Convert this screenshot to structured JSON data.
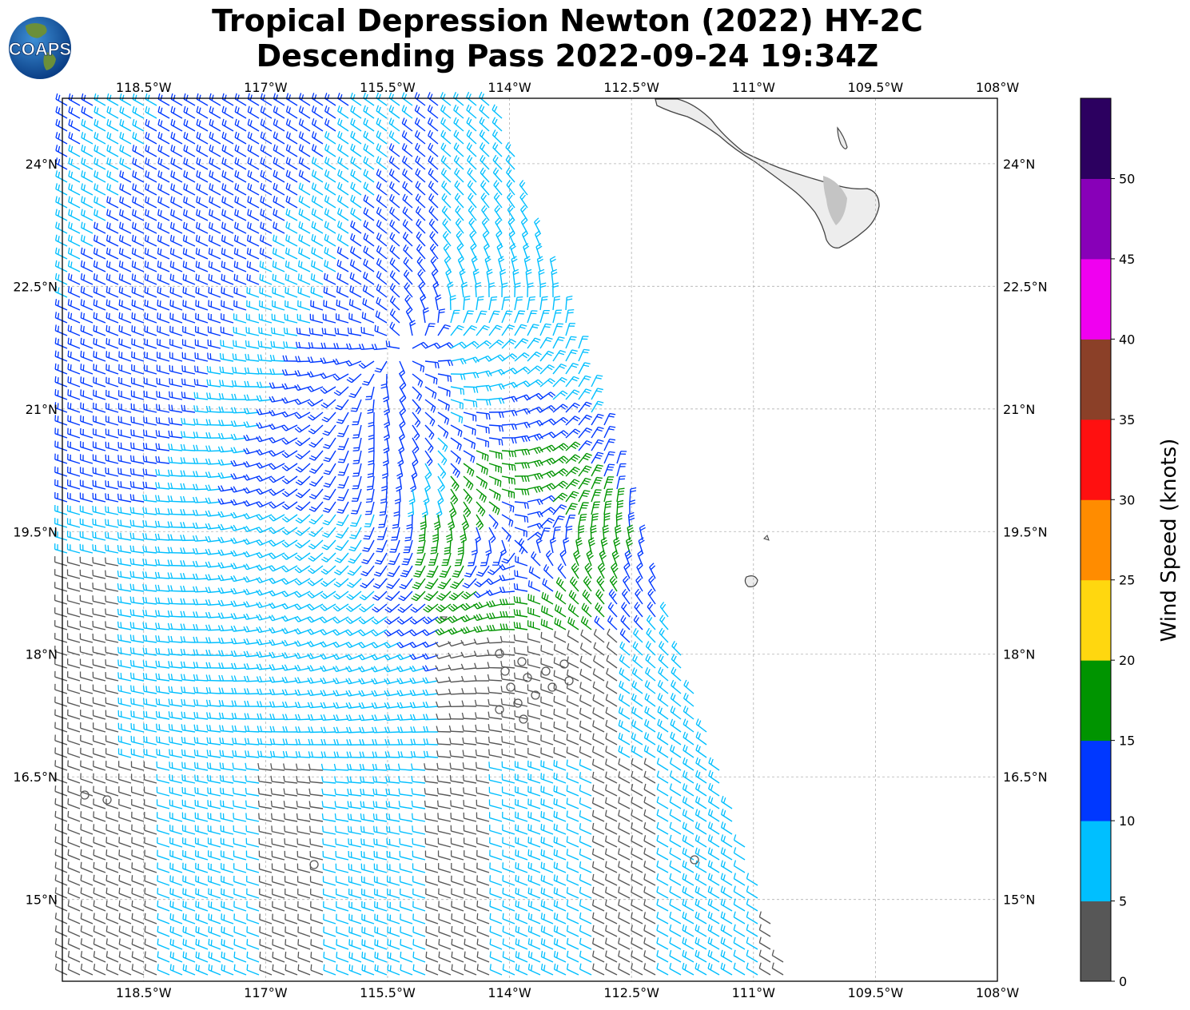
{
  "title": {
    "line1": "Tropical Depression Newton (2022) HY-2C",
    "line2": "Descending Pass 2022-09-24 19:34Z"
  },
  "logo": {
    "text": "COAPS"
  },
  "map": {
    "lon_range": [
      -119.5,
      -108
    ],
    "lat_range": [
      14.0,
      24.8
    ],
    "lon_ticks": [
      "118.5°W",
      "117°W",
      "115.5°W",
      "114°W",
      "112.5°W",
      "111°W",
      "109.5°W",
      "108°W"
    ],
    "lat_ticks": [
      "24°N",
      "22.5°N",
      "21°N",
      "19.5°N",
      "18°N",
      "16.5°N",
      "15°N"
    ],
    "storm_center": {
      "lon": -113.85,
      "lat": 19.3
    }
  },
  "colorbar": {
    "label": "Wind Speed (knots)",
    "tick_labels": [
      "0",
      "5",
      "10",
      "15",
      "20",
      "25",
      "30",
      "35",
      "40",
      "45",
      "50"
    ],
    "bins": [
      {
        "min": 0,
        "max": 5,
        "color": "#575757"
      },
      {
        "min": 5,
        "max": 10,
        "color": "#00bfff"
      },
      {
        "min": 10,
        "max": 15,
        "color": "#0038ff"
      },
      {
        "min": 15,
        "max": 20,
        "color": "#009400"
      },
      {
        "min": 20,
        "max": 25,
        "color": "#ffd70f"
      },
      {
        "min": 25,
        "max": 30,
        "color": "#ff8c00"
      },
      {
        "min": 30,
        "max": 35,
        "color": "#ff1010"
      },
      {
        "min": 35,
        "max": 40,
        "color": "#8b4028"
      },
      {
        "min": 40,
        "max": 45,
        "color": "#f000f0"
      },
      {
        "min": 45,
        "max": 50,
        "color": "#8800b8"
      },
      {
        "min": 50,
        "max": 55,
        "color": "#2c0060"
      }
    ]
  }
}
